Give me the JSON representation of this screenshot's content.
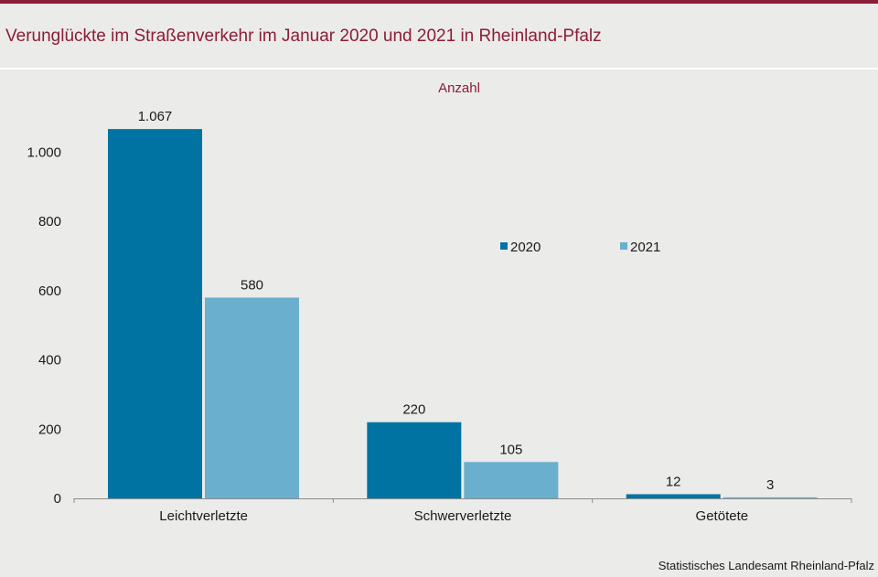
{
  "title": "Verunglückte im Straßenverkehr im Januar 2020 und 2021 in Rheinland-Pfalz",
  "source": "Statistisches Landesamt Rheinland-Pfalz",
  "colors": {
    "accent": "#8c1d36",
    "series_2020": "#0073a3",
    "series_2021": "#6aafcd"
  },
  "chart_data": {
    "type": "bar",
    "title": "Verunglückte im Straßenverkehr im Januar 2020 und 2021 in Rheinland-Pfalz",
    "ylabel": "Anzahl",
    "xlabel": "",
    "categories": [
      "Leichtverletzte",
      "Schwerverletzte",
      "Getötete"
    ],
    "series": [
      {
        "name": "2020",
        "values": [
          1067,
          220,
          12
        ],
        "labels": [
          "1.067",
          "220",
          "12"
        ],
        "color": "#0073a3"
      },
      {
        "name": "2021",
        "values": [
          580,
          105,
          3
        ],
        "labels": [
          "580",
          "105",
          "3"
        ],
        "color": "#6aafcd"
      }
    ],
    "ylim": [
      0,
      1000
    ],
    "yticks": [
      0,
      200,
      400,
      600,
      800,
      1000
    ],
    "ytick_labels": [
      "0",
      "200",
      "400",
      "600",
      "800",
      "1.000"
    ],
    "grid": false,
    "legend_position": "center-right"
  }
}
